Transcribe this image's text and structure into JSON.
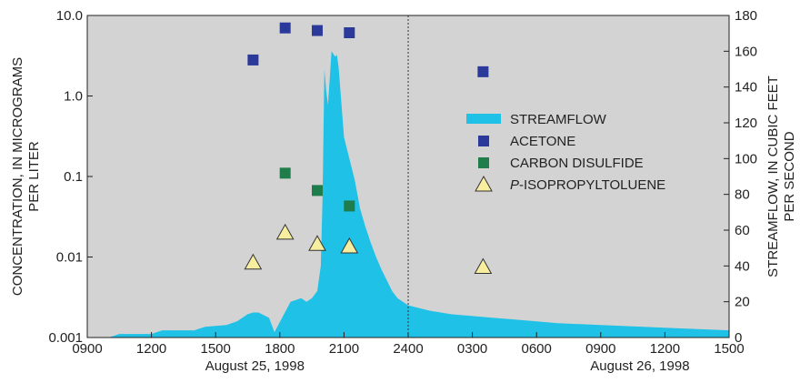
{
  "chart_data": {
    "type": "area",
    "x_ticks": [
      "0900",
      "1200",
      "1500",
      "1800",
      "2100",
      "2400",
      "0300",
      "0600",
      "0900",
      "1200",
      "1500"
    ],
    "date_labels": [
      {
        "text": "August 25, 1998",
        "at_hour": 1650
      },
      {
        "text": "August 26, 1998",
        "at_hour": 3450
      }
    ],
    "x_hours": {
      "start": 900,
      "end": 3900
    },
    "y_left": {
      "label_line1": "CONCENTRATION, IN MICROGRAMS",
      "label_line2": "PER LITER",
      "scale": "log",
      "range": [
        0.001,
        10.0
      ],
      "ticks": [
        {
          "v": 0.001,
          "t": "0.001"
        },
        {
          "v": 0.01,
          "t": "0.01"
        },
        {
          "v": 0.1,
          "t": "0.1"
        },
        {
          "v": 1.0,
          "t": "1.0"
        },
        {
          "v": 10.0,
          "t": "10.0"
        }
      ]
    },
    "y_right": {
      "label_line1": "STREAMFLOW, IN CUBIC FEET",
      "label_line2": "PER SECOND",
      "scale": "linear",
      "range": [
        0,
        180
      ],
      "ticks": [
        "0",
        "20",
        "40",
        "60",
        "80",
        "100",
        "120",
        "140",
        "160",
        "180"
      ]
    },
    "divider_hour": 2400,
    "streamflow": {
      "name": "STREAMFLOW",
      "color": "#1fc1e6",
      "hours": [
        1000,
        1030,
        1200,
        1230,
        1400,
        1430,
        1530,
        1600,
        1630,
        1645,
        1700,
        1730,
        1745,
        1830,
        1900,
        1915,
        1930,
        1945,
        1955,
        2000,
        2005,
        2010,
        2015,
        2025,
        2035,
        2040,
        2045,
        2100,
        2130,
        2145,
        2200,
        2215,
        2230,
        2245,
        2300,
        2315,
        2330,
        2400,
        2500,
        2600,
        2700,
        2800,
        2900,
        3000,
        3100,
        3300,
        3500,
        3700,
        3900
      ],
      "cfs": [
        0,
        2,
        2,
        4,
        4,
        6,
        7,
        9,
        13,
        14,
        14,
        11,
        3,
        20,
        22,
        20,
        22,
        26,
        40,
        80,
        150,
        138,
        130,
        160,
        157,
        158,
        151,
        112,
        88,
        72,
        62,
        53,
        45,
        38,
        32,
        26,
        22,
        18,
        15,
        13,
        12,
        11,
        10,
        9,
        8,
        7,
        6,
        5,
        4
      ]
    },
    "series": [
      {
        "name": "ACETONE",
        "marker": "square",
        "color": "#2b3a9a",
        "points": [
          {
            "hour": 1645,
            "value": 2.8
          },
          {
            "hour": 1815,
            "value": 7.0
          },
          {
            "hour": 1945,
            "value": 6.5
          },
          {
            "hour": 2115,
            "value": 6.1
          },
          {
            "hour": 2730,
            "value": 2.0
          }
        ]
      },
      {
        "name": "CARBON DISULFIDE",
        "marker": "square",
        "color": "#1e7d4a",
        "points": [
          {
            "hour": 1815,
            "value": 0.11
          },
          {
            "hour": 1945,
            "value": 0.067
          },
          {
            "hour": 2115,
            "value": 0.043
          }
        ]
      },
      {
        "name": "P-ISOPROPYLTOLUENE",
        "name_italic_prefix": "P",
        "name_rest": "-ISOPROPYLTOLUENE",
        "marker": "triangle",
        "color": "#f8eea0",
        "points": [
          {
            "hour": 1645,
            "value": 0.0085
          },
          {
            "hour": 1815,
            "value": 0.02
          },
          {
            "hour": 1945,
            "value": 0.0145
          },
          {
            "hour": 2115,
            "value": 0.0135
          },
          {
            "hour": 2730,
            "value": 0.0075
          }
        ]
      }
    ],
    "plot_background": "#d3d3d3"
  }
}
